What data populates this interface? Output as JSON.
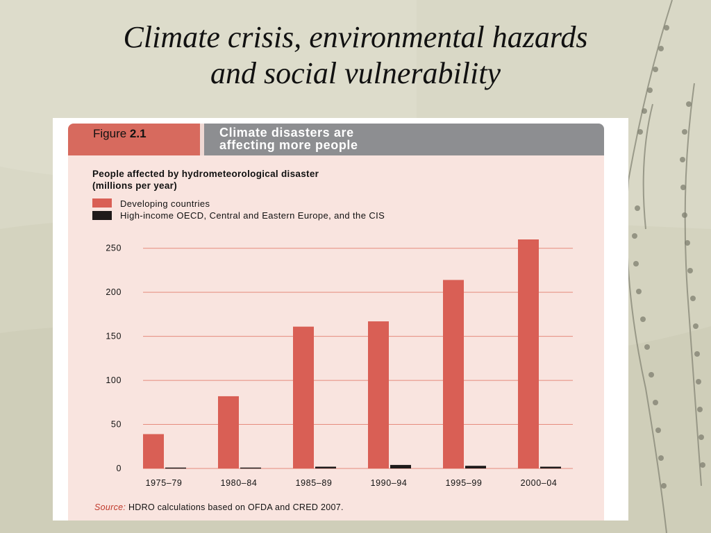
{
  "slide": {
    "title_line1": "Climate crisis, environmental hazards",
    "title_line2": "and social vulnerability"
  },
  "figure": {
    "label_prefix": "Figure",
    "label_number": "2.1",
    "heading_line1": "Climate disasters are",
    "heading_line2": "affecting more people"
  },
  "chart_data": {
    "type": "bar",
    "title": "People affected by hydrometeorological disaster",
    "subtitle": "(millions  per year)",
    "categories": [
      "1975–79",
      "1980–84",
      "1985–89",
      "1990–94",
      "1995–99",
      "2000–04"
    ],
    "series": [
      {
        "name": "Developing countries",
        "color": "#d95f55",
        "values": [
          39,
          82,
          161,
          167,
          214,
          260
        ]
      },
      {
        "name": "High-income OECD, Central and Eastern Europe, and the CIS",
        "color": "#1f1a1a",
        "values": [
          1,
          1,
          2,
          4,
          3,
          2
        ]
      }
    ],
    "ylim": [
      0,
      260
    ],
    "yticks": [
      0,
      50,
      100,
      150,
      200,
      250
    ],
    "grid": true,
    "legend_position": "top-left",
    "source_prefix": "Source:",
    "source_text": " HDRO calculations based on OFDA and CRED 2007."
  },
  "colors": {
    "gridline": "#e58a7c",
    "panel": "#f9e4df",
    "label_bg": "#d76a5e",
    "heading_bg": "#8d8e91"
  }
}
